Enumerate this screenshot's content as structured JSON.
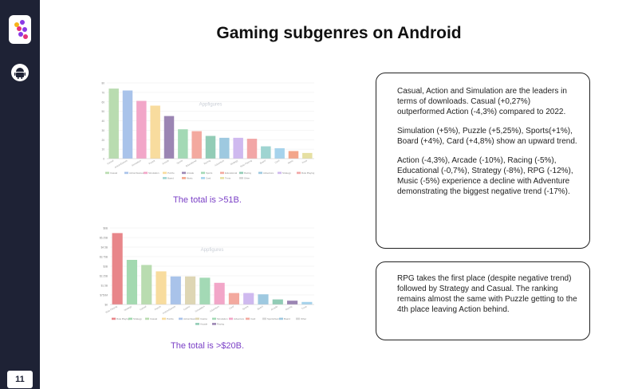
{
  "page": {
    "title": "Gaming subgenres on Android",
    "page_number": "11"
  },
  "sidebar": {
    "logo_icon": "app-logo-icon",
    "platform_icon": "android-icon"
  },
  "charts": {
    "total1": "The total is >51B.",
    "total2": "The total is >$20B."
  },
  "insights": {
    "downloads_p1": "Casual, Action and Simulation are the leaders in terms of downloads. Casual (+0,27%) outperformed Action (-4,3%) compared to 2022.",
    "downloads_p2": "Simulation (+5%), Puzzle (+5,25%), Sports(+1%), Board (+4%), Card (+4,8%) show an upward trend.",
    "downloads_p3": "Action (-4,3%), Arcade (-10%), Racing (-5%), Educational (-0,7%), Strategy (-8%), RPG (-12%), Music (-5%) experience a decline with Adventure demonstrating the biggest negative trend (-17%).",
    "revenue_p1": "RPG takes the first place (despite negative trend) followed by Strategy and Casual. The ranking remains almost the same with Puzzle getting to the 4th place leaving Action behind."
  },
  "chart_data": [
    {
      "type": "bar",
      "title": "",
      "watermark": "Appfigures",
      "categories": [
        "Casual",
        "Action/Games",
        "Simulation",
        "Puzzle",
        "Arcade",
        "Sports",
        "Educational",
        "Racing",
        "Adventure",
        "Strategy",
        "Role Playing",
        "Board",
        "Card",
        "Music",
        "Trivia"
      ],
      "values": [
        74,
        72,
        61,
        56,
        45,
        31,
        29,
        24,
        22,
        22,
        21,
        13,
        11,
        8,
        6
      ],
      "colors": [
        "#b9dcb0",
        "#a9c3ea",
        "#f2a6c8",
        "#f8dc9e",
        "#9b85b3",
        "#a3d9b5",
        "#f3a99f",
        "#92ccb6",
        "#9ec9e0",
        "#cfb9ef",
        "#f2a6a6",
        "#9fd4d1",
        "#a6d3ec",
        "#f3a58a",
        "#e6e0a2"
      ],
      "legend": [
        "Casual",
        "Action/Games",
        "Simulation",
        "Puzzle",
        "Arcade",
        "Sports",
        "Educational",
        "Racing",
        "Adventure",
        "Strategy",
        "Role Playing",
        "Board",
        "Music",
        "Card",
        "Trivia",
        "Other"
      ],
      "ylim": [
        0,
        80
      ],
      "yticks": [
        "0",
        "10",
        "20",
        "30",
        "40",
        "50",
        "60",
        "70",
        "80"
      ],
      "grid": true,
      "legend_position": "bottom"
    },
    {
      "type": "bar",
      "title": "",
      "watermark": "Appfigures",
      "categories": [
        "Role Playing",
        "Strategy",
        "Casual",
        "Puzzle",
        "Action/Games",
        "Casino",
        "Simulation",
        "Adventure",
        "Card",
        "Sports",
        "Board",
        "Arcade",
        "Racing",
        "Trivia"
      ],
      "values": [
        5.6,
        3.5,
        3.1,
        2.6,
        2.2,
        2.2,
        2.1,
        1.7,
        0.9,
        0.9,
        0.8,
        0.4,
        0.3,
        0.2
      ],
      "colors": [
        "#e8868a",
        "#a3d9b0",
        "#b9dcb0",
        "#f8dc9e",
        "#a9c3ea",
        "#ded6b4",
        "#a3d9b5",
        "#f2a6c8",
        "#f3a99f",
        "#cfb9ef",
        "#9ec9e0",
        "#92ccb6",
        "#9b85b3",
        "#a6d3ec"
      ],
      "legend": [
        "Role Playing",
        "Strategy",
        "Casual",
        "Puzzle",
        "Action/Games",
        "Casino",
        "Simulation",
        "Adventure",
        "Card",
        "Sports/Games",
        "Board",
        "Other",
        "Arcade",
        "Racing"
      ],
      "ylim": [
        0,
        6
      ],
      "yticks": [
        "$0",
        "$750M",
        "$1.5B",
        "$2.25B",
        "$3B",
        "$3.75B",
        "$4.5B",
        "$5.25B",
        "$6B"
      ],
      "grid": true,
      "legend_position": "bottom"
    }
  ]
}
